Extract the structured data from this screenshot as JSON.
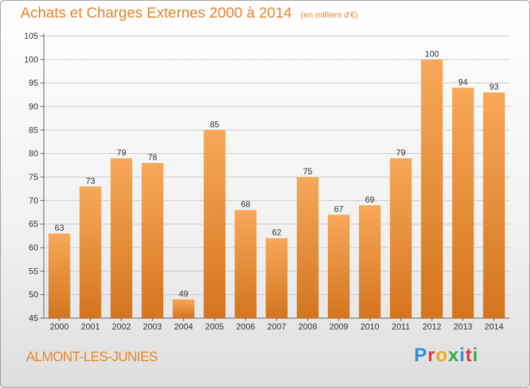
{
  "header": {
    "title": "Achats et Charges Externes 2000 à 2014",
    "unit": "(en milliers d'€)"
  },
  "commune": "ALMONT-LES-JUNIES",
  "logo": {
    "letters": [
      "P",
      "r",
      "o",
      "x",
      "i",
      "t",
      "i"
    ],
    "colors": [
      "#2e8fd6",
      "#e03a3a",
      "#f2a81d",
      "#3aa84a",
      "#2e8fd6",
      "#e03a3a",
      "#3aa84a"
    ]
  },
  "colors": {
    "bar_top": "#f7a858",
    "bar_bottom": "#d4741e",
    "accent": "#e8842a",
    "grid": "#c8c8c8"
  },
  "chart_data": {
    "type": "bar",
    "categories": [
      "2000",
      "2001",
      "2002",
      "2003",
      "2004",
      "2005",
      "2006",
      "2007",
      "2008",
      "2009",
      "2010",
      "2011",
      "2012",
      "2013",
      "2014"
    ],
    "values": [
      63,
      73,
      79,
      78,
      49,
      85,
      68,
      62,
      75,
      67,
      69,
      79,
      100,
      94,
      93
    ],
    "yticks": [
      45,
      50,
      55,
      60,
      65,
      70,
      75,
      80,
      85,
      90,
      95,
      100,
      105
    ],
    "ylim": [
      45,
      105
    ],
    "grid": true,
    "title": "Achats et Charges Externes 2000 à 2014",
    "xlabel": "",
    "ylabel": "(en milliers d'€)"
  }
}
